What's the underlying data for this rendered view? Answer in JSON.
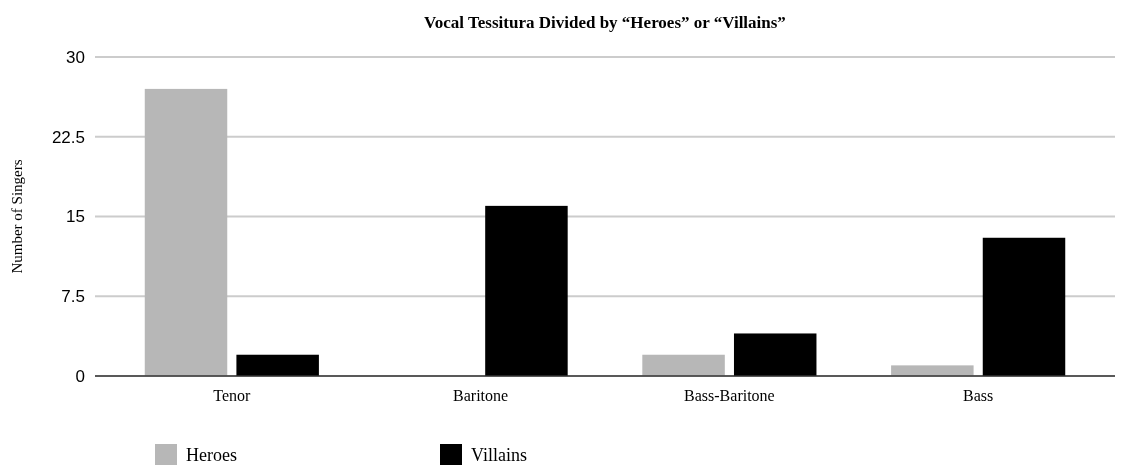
{
  "chart_data": {
    "type": "bar",
    "title": "Vocal Tessitura Divided by “Heroes” or “Villains”",
    "ylabel": "Number of Singers",
    "categories": [
      "Tenor",
      "Baritone",
      "Bass-Baritone",
      "Bass"
    ],
    "series": [
      {
        "name": "Heroes",
        "color": "#b7b7b7",
        "values": [
          27,
          0,
          2,
          1
        ]
      },
      {
        "name": "Villains",
        "color": "#000000",
        "values": [
          2,
          16,
          4,
          13
        ]
      }
    ],
    "ylim": [
      0,
      30
    ],
    "yticks": [
      0,
      {
        "value": 7.5,
        "label": "7.5"
      },
      15,
      {
        "value": 22.5,
        "label": "22.5"
      },
      30
    ],
    "grid": "y",
    "legend": "bottom"
  }
}
